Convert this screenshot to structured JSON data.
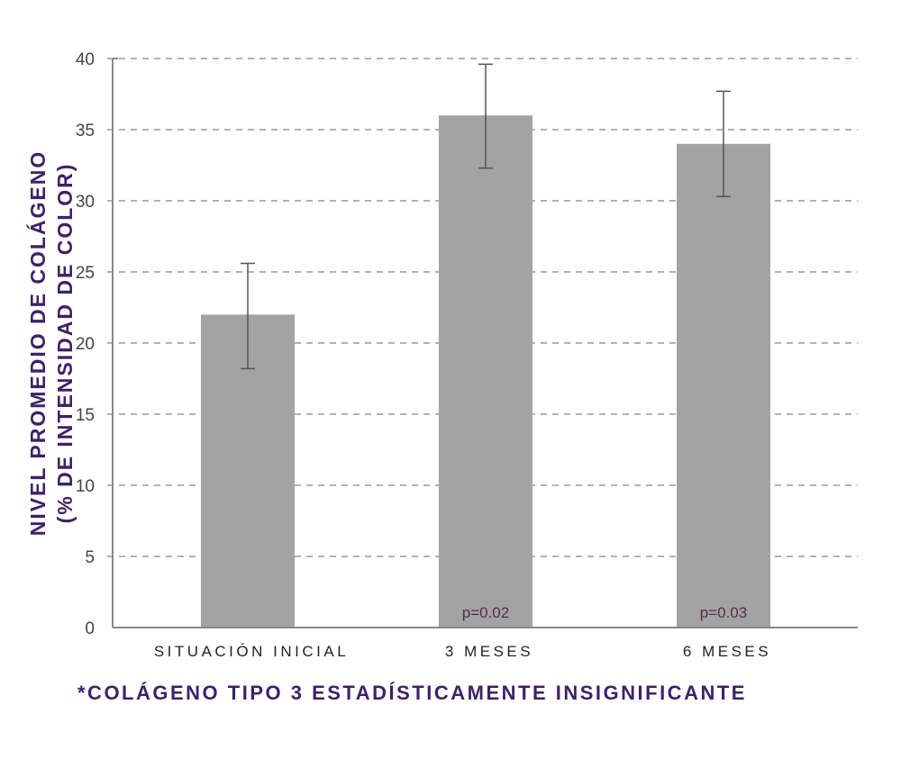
{
  "chart_data": {
    "type": "bar",
    "title": "",
    "categories": [
      "SITUACIÓN INICIAL",
      "3 MESES",
      "6 MESES"
    ],
    "values": [
      22,
      36,
      34
    ],
    "error_bars": [
      {
        "low": 18.2,
        "high": 25.6
      },
      {
        "low": 32.3,
        "high": 39.6
      },
      {
        "low": 30.3,
        "high": 37.7
      }
    ],
    "annotations": [
      "",
      "p=0.02",
      "p=0.03"
    ],
    "xlabel": "",
    "ylabel_line1": "NIVEL PROMEDIO DE COLÁGENO",
    "ylabel_line2": "(% DE INTENSIDAD DE COLOR)",
    "ylim": [
      0,
      40
    ],
    "yticks": [
      0,
      5,
      10,
      15,
      20,
      25,
      30,
      35,
      40
    ],
    "grid": "horizontal dashed",
    "legend": "none",
    "footnote": "*COLÁGENO TIPO 3 ESTADÍSTICAMENTE INSIGNIFICANTE"
  },
  "colors": {
    "bar": "#a3a3a3",
    "error_bar": "#555555",
    "grid": "#999999",
    "axis": "#888888",
    "tick_text": "#444444",
    "category_text": "#222222",
    "title_purple": "#3e2266",
    "annotation": "#5a2a4a"
  }
}
